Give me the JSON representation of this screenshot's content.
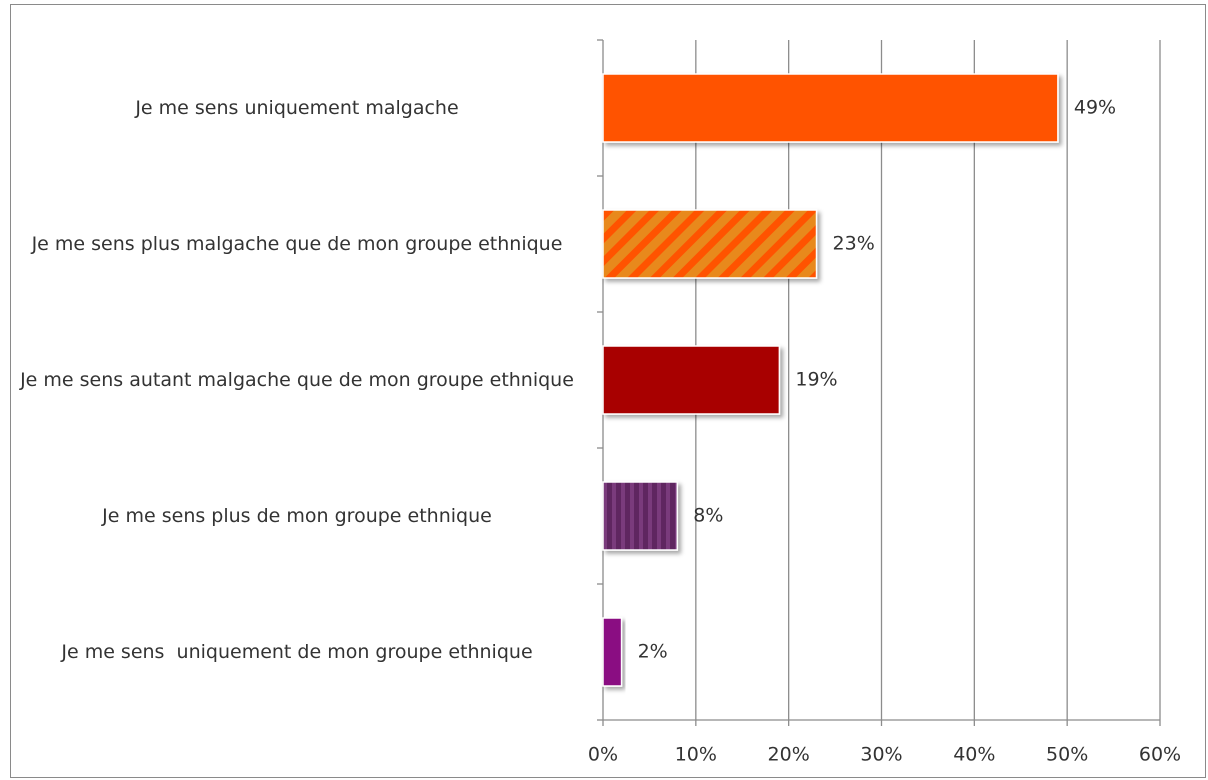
{
  "chart_data": {
    "type": "bar",
    "orientation": "horizontal",
    "categories": [
      "Je me sens uniquement malgache",
      "Je me sens plus malgache que de mon groupe ethnique",
      "Je me sens autant malgache que de mon groupe ethnique",
      "Je me sens plus de mon groupe ethnique",
      "Je me sens  uniquement de mon groupe ethnique"
    ],
    "values": [
      49,
      23,
      19,
      8,
      2
    ],
    "value_labels": [
      "49%",
      "23%",
      "19%",
      "8%",
      "2%"
    ],
    "colors": [
      "#ff5200",
      "#e8891a",
      "#a80000",
      "#5e2660",
      "#8a1082"
    ],
    "xlim": [
      0,
      60
    ],
    "xticks": [
      {
        "value": 0,
        "label": "0%"
      },
      {
        "value": 10,
        "label": "10%"
      },
      {
        "value": 20,
        "label": "20%"
      },
      {
        "value": 30,
        "label": "30%"
      },
      {
        "value": 40,
        "label": "40%"
      },
      {
        "value": 50,
        "label": "50%"
      },
      {
        "value": 60,
        "label": "60%"
      }
    ],
    "grid": true
  }
}
